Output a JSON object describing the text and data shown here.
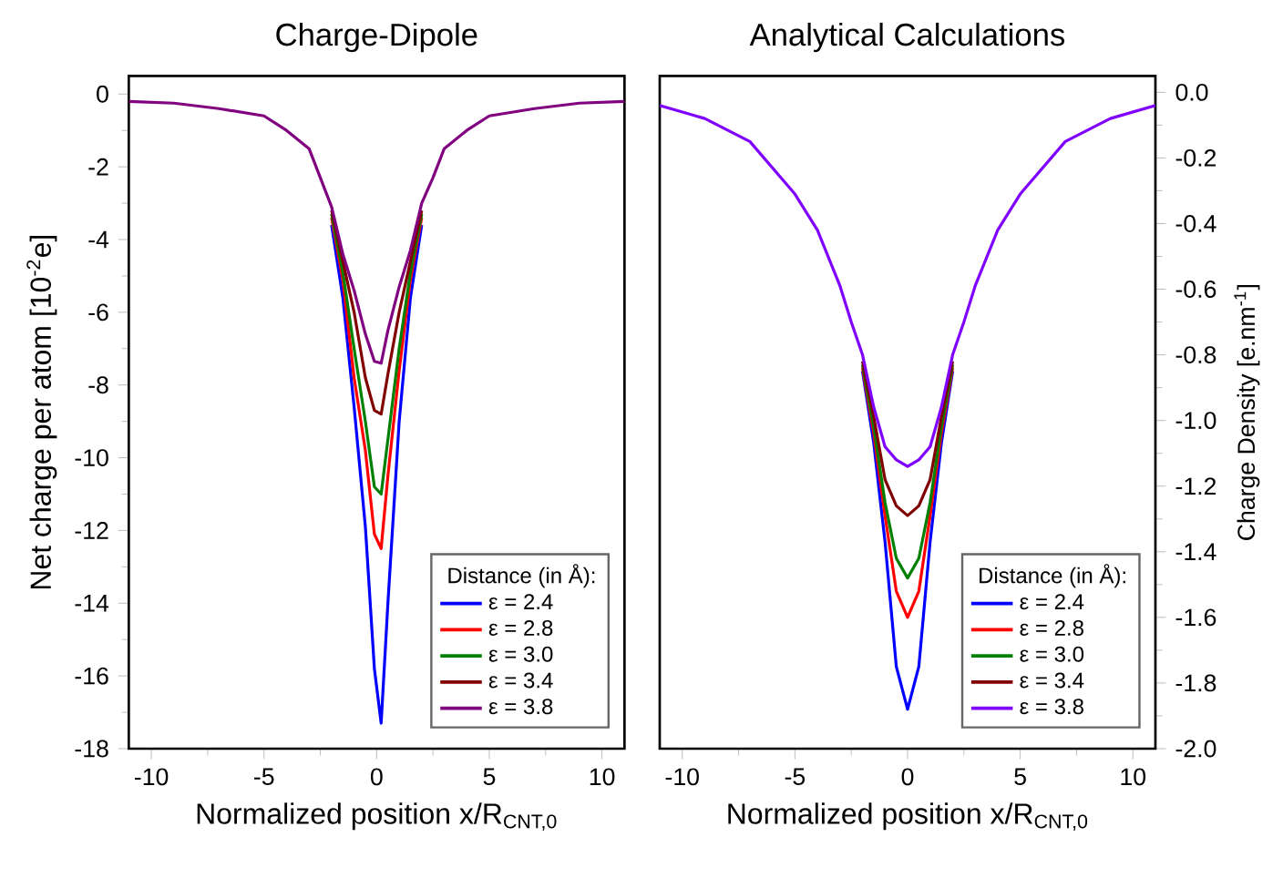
{
  "chart_data": [
    {
      "type": "line",
      "title": "Charge-Dipole",
      "xlabel": "Normalized position x/R$_{CNT,0}$",
      "ylabel": "Net charge per atom [10$^{-2}$e]",
      "legend_title": "Distance (in Å):",
      "legend": "bottom right",
      "grid": false,
      "marker": "none",
      "line_style": "solid",
      "xlim": [
        -11,
        11
      ],
      "xticks": [
        -10,
        -5,
        0,
        5,
        10
      ],
      "ylim": [
        -18,
        0.5
      ],
      "yticks": [
        -18,
        -16,
        -14,
        -12,
        -10,
        -8,
        -6,
        -4,
        -2,
        0
      ],
      "x": [
        -11,
        -9,
        -7,
        -5,
        -4,
        -3,
        -2.5,
        -2,
        -1.5,
        -1,
        -0.5,
        -0.1,
        0.2,
        0.5,
        1,
        1.5,
        2,
        2.5,
        3,
        4,
        5,
        7,
        9,
        11
      ],
      "series": [
        {
          "name": "ε = 2.4",
          "color": "#0000ff",
          "values": [
            null,
            null,
            null,
            null,
            null,
            null,
            null,
            -3.6,
            -5.6,
            -8.6,
            -11.9,
            -15.8,
            -17.3,
            -14.0,
            -9.0,
            -5.6,
            -3.6,
            null,
            null,
            null,
            null,
            null,
            null,
            null
          ]
        },
        {
          "name": "ε = 2.8",
          "color": "#ff0000",
          "values": [
            null,
            null,
            null,
            null,
            null,
            null,
            null,
            -3.4,
            -5.1,
            -7.8,
            -9.8,
            -12.1,
            -12.5,
            -10.5,
            -7.6,
            -5.1,
            -3.4,
            null,
            null,
            null,
            null,
            null,
            null,
            null
          ]
        },
        {
          "name": "ε = 3.0",
          "color": "#008000",
          "values": [
            null,
            null,
            null,
            null,
            null,
            null,
            null,
            -3.3,
            -4.9,
            -7.0,
            -9.0,
            -10.8,
            -11.0,
            -9.5,
            -7.0,
            -4.9,
            -3.3,
            null,
            null,
            null,
            null,
            null,
            null,
            null
          ]
        },
        {
          "name": "ε = 3.4",
          "color": "#800000",
          "values": [
            null,
            null,
            null,
            null,
            null,
            null,
            null,
            -3.2,
            -4.6,
            -6.0,
            -7.8,
            -8.7,
            -8.8,
            -7.7,
            -6.0,
            -4.6,
            -3.2,
            null,
            null,
            null,
            null,
            null,
            null,
            null
          ]
        },
        {
          "name": "ε = 3.8",
          "color": "#800080",
          "values": [
            -0.2,
            -0.25,
            -0.4,
            -0.6,
            -1.0,
            -1.5,
            -2.3,
            -3.1,
            -4.4,
            -5.4,
            -6.6,
            -7.35,
            -7.4,
            -6.5,
            -5.3,
            -4.3,
            -3.0,
            -2.3,
            -1.5,
            -1.0,
            -0.6,
            -0.4,
            -0.25,
            -0.2
          ]
        }
      ]
    },
    {
      "type": "line",
      "title": "Analytical Calculations",
      "xlabel": "Normalized position x/R$_{CNT,0}$",
      "ylabel": "Charge Density [e.nm$^{-1}$]",
      "legend_title": "Distance (in Å):",
      "legend": "bottom right",
      "grid": false,
      "marker": "none",
      "line_style": "solid",
      "xlim": [
        -11,
        11
      ],
      "xticks": [
        -10,
        -5,
        0,
        5,
        10
      ],
      "ylim": [
        -2.0,
        0.05
      ],
      "yticks": [
        {
          "value": -2.0,
          "label": "-2.0"
        },
        {
          "value": -1.8,
          "label": "-1.8"
        },
        {
          "value": -1.6,
          "label": "-1.6"
        },
        {
          "value": -1.4,
          "label": "-1.4"
        },
        {
          "value": -1.2,
          "label": "-1.2"
        },
        {
          "value": -1.0,
          "label": "-1.0"
        },
        {
          "value": -0.8,
          "label": "-0.8"
        },
        {
          "value": -0.6,
          "label": "-0.6"
        },
        {
          "value": -0.4,
          "label": "-0.4"
        },
        {
          "value": -0.2,
          "label": "-0.2"
        },
        {
          "value": 0,
          "label": "0.0"
        }
      ],
      "x": [
        -11,
        -9,
        -7,
        -5,
        -4,
        -3,
        -2.5,
        -2,
        -1.5,
        -1,
        -0.5,
        0,
        0.5,
        1,
        1.5,
        2,
        2.5,
        3,
        4,
        5,
        7,
        9,
        11
      ],
      "series": [
        {
          "name": "ε = 2.4",
          "color": "#0000ff",
          "values": [
            null,
            null,
            null,
            null,
            null,
            null,
            null,
            -0.85,
            -1.07,
            -1.37,
            -1.75,
            -1.88,
            -1.75,
            -1.37,
            -1.07,
            -0.85,
            null,
            null,
            null,
            null,
            null,
            null,
            null
          ]
        },
        {
          "name": "ε = 2.8",
          "color": "#ff0000",
          "values": [
            null,
            null,
            null,
            null,
            null,
            null,
            null,
            -0.84,
            -1.04,
            -1.29,
            -1.52,
            -1.6,
            -1.52,
            -1.29,
            -1.04,
            -0.84,
            null,
            null,
            null,
            null,
            null,
            null,
            null
          ]
        },
        {
          "name": "ε = 3.0",
          "color": "#008000",
          "values": [
            null,
            null,
            null,
            null,
            null,
            null,
            null,
            -0.83,
            -1.02,
            -1.25,
            -1.42,
            -1.48,
            -1.42,
            -1.25,
            -1.02,
            -0.83,
            null,
            null,
            null,
            null,
            null,
            null,
            null
          ]
        },
        {
          "name": "ε = 3.4",
          "color": "#800000",
          "values": [
            null,
            null,
            null,
            null,
            null,
            null,
            null,
            -0.82,
            -0.99,
            -1.18,
            -1.26,
            -1.29,
            -1.26,
            -1.18,
            -0.99,
            -0.82,
            null,
            null,
            null,
            null,
            null,
            null,
            null
          ]
        },
        {
          "name": "ε = 3.8",
          "color": "#8000ff",
          "values": [
            -0.04,
            -0.08,
            -0.15,
            -0.31,
            -0.42,
            -0.59,
            -0.7,
            -0.8,
            -0.96,
            -1.08,
            -1.12,
            -1.14,
            -1.12,
            -1.08,
            -0.96,
            -0.8,
            -0.7,
            -0.59,
            -0.42,
            -0.31,
            -0.15,
            -0.08,
            -0.04
          ]
        }
      ]
    }
  ]
}
